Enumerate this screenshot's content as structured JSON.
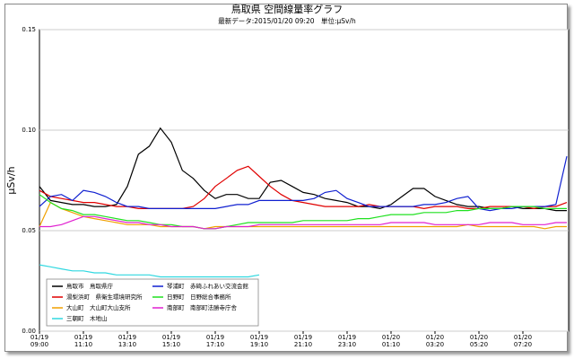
{
  "chart_data": {
    "type": "line",
    "title": "鳥取県 空間線量率グラフ",
    "subtitle": "最新データ:2015/01/20 09:20　単位:μSv/h",
    "y_label": "μSv/h",
    "categories": [
      "01/19\n09:00",
      null,
      null,
      null,
      "01/19\n11:10",
      null,
      null,
      null,
      "01/19\n13:10",
      null,
      null,
      null,
      "01/19\n15:10",
      null,
      null,
      null,
      "01/19\n17:10",
      null,
      null,
      null,
      "01/19\n19:10",
      null,
      null,
      null,
      "01/19\n21:10",
      null,
      null,
      null,
      "01/19\n23:10",
      null,
      null,
      null,
      "01/20\n01:10",
      null,
      null,
      null,
      "01/20\n03:20",
      null,
      null,
      null,
      "01/20\n05:20",
      null,
      null,
      null,
      "01/20\n07:20",
      null,
      null,
      null,
      null
    ],
    "ylim": [
      0,
      0.15
    ],
    "yticks": [
      {
        "value": 0,
        "label": "0.00"
      },
      0.05,
      {
        "value": 0.1,
        "label": "0.10"
      },
      0.15
    ],
    "grid": true,
    "series": [
      {
        "name": "鳥取市　鳥取県庁",
        "color": "#000000",
        "values": [
          0.072,
          0.065,
          0.064,
          0.063,
          0.063,
          0.062,
          0.062,
          0.063,
          0.072,
          0.088,
          0.092,
          0.101,
          0.094,
          0.08,
          0.076,
          0.07,
          0.066,
          0.068,
          0.068,
          0.066,
          0.066,
          0.074,
          0.075,
          0.072,
          0.069,
          0.068,
          0.066,
          0.065,
          0.064,
          0.062,
          0.062,
          0.061,
          0.063,
          0.067,
          0.071,
          0.071,
          0.067,
          0.065,
          0.063,
          0.062,
          0.062,
          0.061,
          0.061,
          0.062,
          0.061,
          0.061,
          0.061,
          0.06,
          0.06
        ]
      },
      {
        "name": "湯梨浜町　県衛生環境研究所",
        "color": "#e00000",
        "values": [
          0.07,
          0.067,
          0.066,
          0.065,
          0.064,
          0.064,
          0.063,
          0.062,
          0.062,
          0.061,
          0.061,
          0.061,
          0.061,
          0.061,
          0.062,
          0.066,
          0.072,
          0.076,
          0.08,
          0.082,
          0.077,
          0.072,
          0.068,
          0.065,
          0.064,
          0.063,
          0.062,
          0.062,
          0.062,
          0.062,
          0.063,
          0.062,
          0.062,
          0.062,
          0.062,
          0.061,
          0.062,
          0.062,
          0.062,
          0.061,
          0.061,
          0.062,
          0.062,
          0.062,
          0.062,
          0.061,
          0.062,
          0.062,
          0.064
        ]
      },
      {
        "name": "大山町　大山町大山支所",
        "color": "#f0a000",
        "values": [
          0.052,
          0.064,
          0.061,
          0.059,
          0.057,
          0.056,
          0.055,
          0.054,
          0.053,
          0.053,
          0.053,
          0.052,
          0.052,
          0.052,
          0.052,
          0.051,
          0.052,
          0.052,
          0.052,
          0.052,
          0.052,
          0.052,
          0.052,
          0.052,
          0.052,
          0.052,
          0.052,
          0.052,
          0.052,
          0.052,
          0.052,
          0.052,
          0.052,
          0.052,
          0.052,
          0.052,
          0.052,
          0.052,
          0.052,
          0.053,
          0.052,
          0.052,
          0.052,
          0.052,
          0.052,
          0.052,
          0.051,
          0.052,
          0.052
        ]
      },
      {
        "name": "三朝町　木地山",
        "color": "#30d8e0",
        "values": [
          0.033,
          0.032,
          0.031,
          0.03,
          0.03,
          0.029,
          0.029,
          0.028,
          0.028,
          0.028,
          0.028,
          0.027,
          0.027,
          0.027,
          0.027,
          0.027,
          0.027,
          0.027,
          0.027,
          0.027,
          0.028,
          null,
          null,
          null,
          null,
          null,
          null,
          null,
          null,
          null,
          null,
          null,
          null,
          null,
          null,
          null,
          null,
          null,
          null,
          null,
          null,
          null,
          null,
          null,
          null,
          null,
          null,
          null,
          null
        ]
      },
      {
        "name": "琴浦町　赤碕ふれあい交流会館",
        "color": "#1020d0",
        "values": [
          0.062,
          0.067,
          0.068,
          0.065,
          0.07,
          0.069,
          0.067,
          0.064,
          0.062,
          0.062,
          0.061,
          0.061,
          0.061,
          0.061,
          0.061,
          0.061,
          0.061,
          0.062,
          0.063,
          0.063,
          0.065,
          0.065,
          0.065,
          0.065,
          0.065,
          0.066,
          0.069,
          0.07,
          0.066,
          0.064,
          0.062,
          0.062,
          0.062,
          0.062,
          0.062,
          0.063,
          0.063,
          0.064,
          0.066,
          0.067,
          0.061,
          0.06,
          0.061,
          0.061,
          0.062,
          0.062,
          0.062,
          0.063,
          0.087
        ]
      },
      {
        "name": "日野町　日野総合事務所",
        "color": "#20e020",
        "values": [
          0.068,
          0.064,
          0.061,
          0.06,
          0.058,
          0.058,
          0.057,
          0.056,
          0.055,
          0.055,
          0.054,
          0.053,
          0.053,
          0.052,
          0.052,
          0.051,
          0.051,
          0.052,
          0.053,
          0.054,
          0.054,
          0.054,
          0.054,
          0.054,
          0.055,
          0.055,
          0.055,
          0.055,
          0.055,
          0.056,
          0.056,
          0.057,
          0.058,
          0.058,
          0.058,
          0.059,
          0.059,
          0.059,
          0.06,
          0.06,
          0.061,
          0.061,
          0.061,
          0.062,
          0.062,
          0.062,
          0.061,
          0.061,
          0.061
        ]
      },
      {
        "name": "南部町　南部町法勝寺庁舎",
        "color": "#e020d0",
        "values": [
          0.052,
          0.052,
          0.053,
          0.055,
          0.057,
          0.057,
          0.056,
          0.055,
          0.054,
          0.054,
          0.053,
          0.053,
          0.052,
          0.052,
          0.052,
          0.051,
          0.051,
          0.052,
          0.052,
          0.052,
          0.053,
          0.053,
          0.053,
          0.053,
          0.053,
          0.053,
          0.053,
          0.053,
          0.053,
          0.053,
          0.053,
          0.053,
          0.054,
          0.054,
          0.054,
          0.054,
          0.053,
          0.053,
          0.053,
          0.053,
          0.053,
          0.054,
          0.054,
          0.054,
          0.053,
          0.053,
          0.053,
          0.054,
          0.054
        ]
      }
    ]
  }
}
